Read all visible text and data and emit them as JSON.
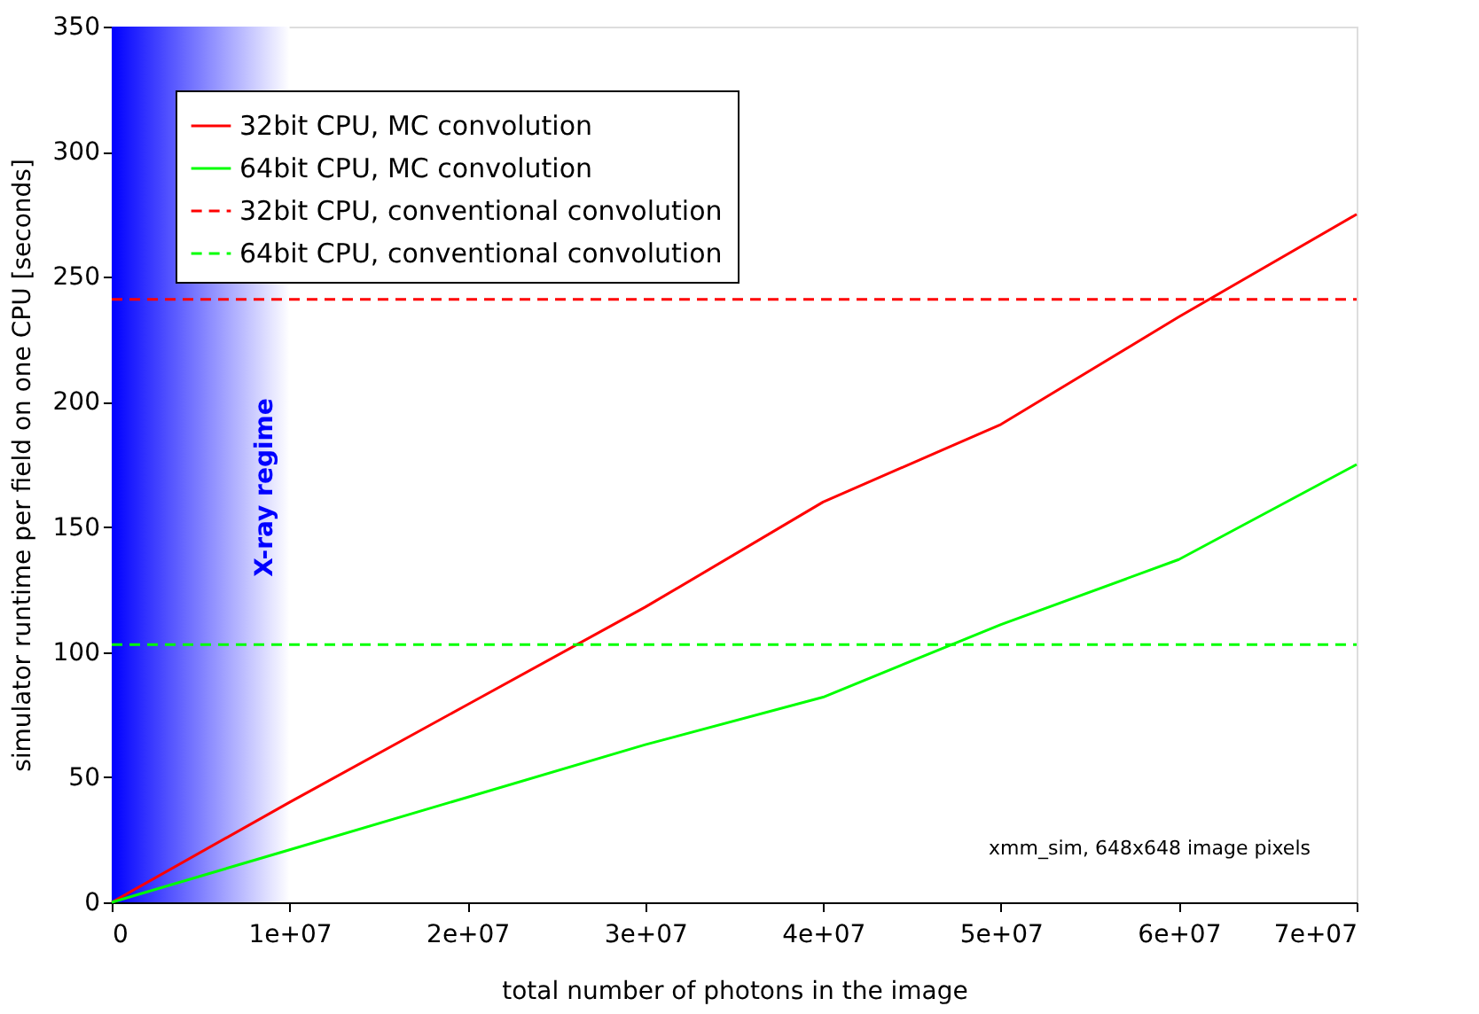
{
  "chart_data": {
    "type": "line",
    "xlabel": "total number of photons in the image",
    "ylabel": "simulator runtime per field on one CPU [seconds]",
    "x": [
      0,
      10000000,
      20000000,
      30000000,
      40000000,
      50000000,
      60000000,
      70000000
    ],
    "series": [
      {
        "name": "32bit CPU, MC convolution",
        "color": "#ff0000",
        "values": [
          0,
          40,
          79,
          118,
          160,
          191,
          234,
          275
        ]
      },
      {
        "name": "64bit CPU, MC convolution",
        "color": "#00ff00",
        "values": [
          0,
          21,
          42,
          63,
          82,
          111,
          137,
          175
        ]
      }
    ],
    "ref_lines": [
      {
        "axis": "y",
        "value": 241,
        "label": "32bit CPU, conventional convolution",
        "color": "#ff0000",
        "line_style": "dashed"
      },
      {
        "axis": "y",
        "value": 103,
        "label": "64bit CPU, conventional convolution",
        "color": "#00ff00",
        "line_style": "dashed"
      }
    ],
    "bands": [
      {
        "axis": "x",
        "from": 0,
        "to": 10000000,
        "label": "X-ray regime",
        "color": "#0000ff"
      }
    ],
    "annotations": [
      "xmm_sim, 648x648 image pixels"
    ],
    "xlim": [
      0,
      70000000
    ],
    "xticks": [
      0,
      {
        "value": 10000000,
        "label": "1e+07"
      },
      {
        "value": 20000000,
        "label": "2e+07"
      },
      {
        "value": 30000000,
        "label": "3e+07"
      },
      {
        "value": 40000000,
        "label": "4e+07"
      },
      {
        "value": 50000000,
        "label": "5e+07"
      },
      {
        "value": 60000000,
        "label": "6e+07"
      },
      {
        "value": 70000000,
        "label": "7e+07"
      }
    ],
    "ylim": [
      0,
      350
    ],
    "yticks": [
      0,
      50,
      100,
      150,
      200,
      250,
      300,
      350
    ],
    "grid": false,
    "legend": "top left",
    "line_style": "solid",
    "marker": "none"
  }
}
